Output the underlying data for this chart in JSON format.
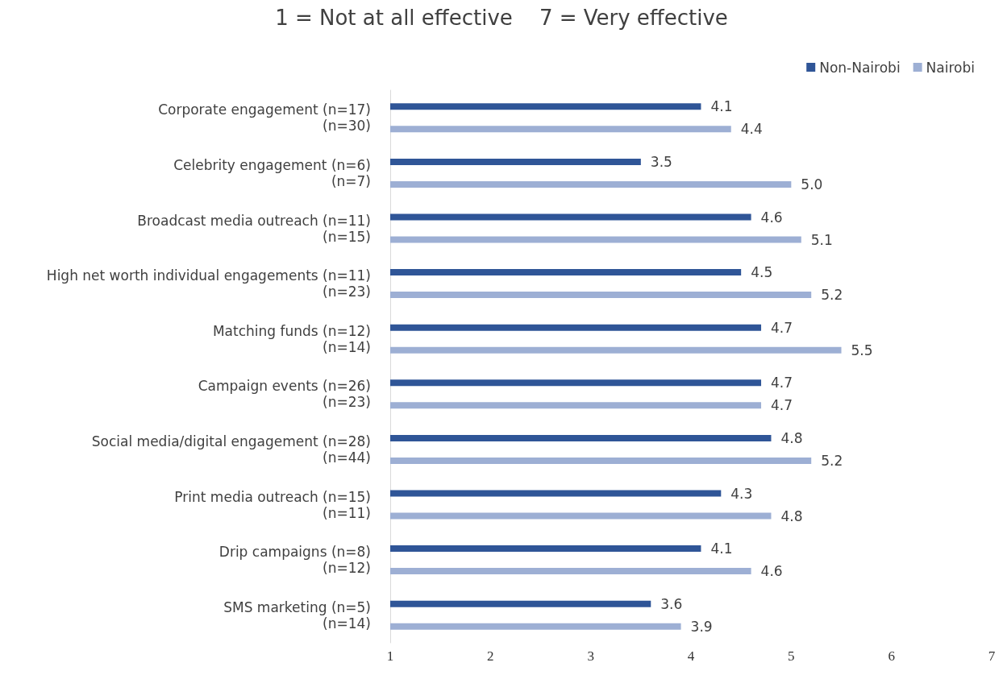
{
  "chart_data": {
    "type": "bar",
    "orientation": "horizontal",
    "title": "1 = Not at all effective    7 = Very effective",
    "categories": [
      "Corporate engagement (n=17)\n(n=30)",
      "Celebrity engagement (n=6)\n(n=7)",
      "Broadcast media outreach (n=11)\n(n=15)",
      "High net worth individual engagements (n=11)\n(n=23)",
      "Matching funds (n=12)\n(n=14)",
      "Campaign events (n=26)\n(n=23)",
      "Social media/digital engagement (n=28)\n(n=44)",
      "Print media outreach (n=15)\n(n=11)",
      "Drip campaigns (n=8)\n(n=12)",
      "SMS marketing (n=5)\n(n=14)"
    ],
    "series": [
      {
        "name": "Non-Nairobi",
        "color": "#2f5597",
        "values": [
          4.1,
          3.5,
          4.6,
          4.5,
          4.7,
          4.7,
          4.8,
          4.3,
          4.1,
          3.6
        ]
      },
      {
        "name": "Nairobi",
        "color": "#9dafd4",
        "values": [
          4.4,
          5.0,
          5.1,
          5.2,
          5.5,
          4.7,
          5.2,
          4.8,
          4.6,
          3.9
        ],
        "value_labels": [
          "4.4",
          "5.0",
          "5.1",
          "5.2",
          "5.5",
          "4.7",
          "5.2",
          "4.8",
          "4.6",
          "3.9"
        ]
      }
    ],
    "xlim": [
      1,
      7
    ],
    "xticks": [
      1,
      2,
      3,
      4,
      5,
      6,
      7
    ],
    "data_labels": true,
    "legend": "top right",
    "grid": false
  }
}
